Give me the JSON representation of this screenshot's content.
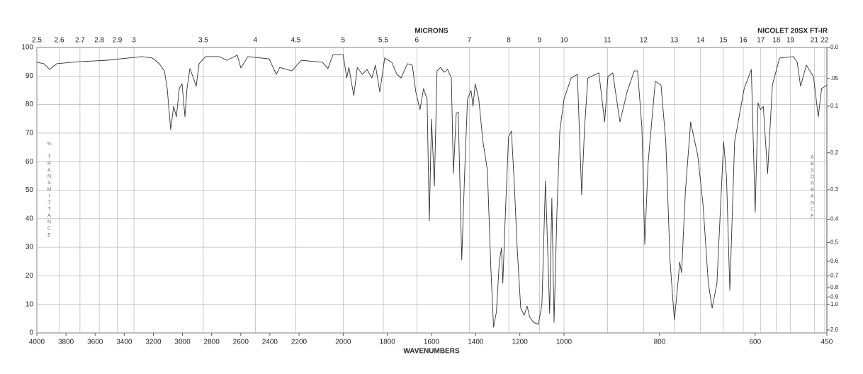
{
  "chart_data": {
    "type": "line",
    "title": "NICOLET 20SX FT-IR",
    "xlabel": "WAVENUMBERS",
    "x2label": "MICRONS",
    "ylabel": "% TRANSMITTANCE",
    "y2label": "ABSORBANCE",
    "color": "#333333",
    "grid": true,
    "xlim": [
      4000,
      450
    ],
    "xticks": [
      4000,
      3800,
      3600,
      3400,
      3200,
      3000,
      2800,
      2600,
      2400,
      2200,
      2000,
      1800,
      1600,
      1400,
      1200,
      1000,
      800,
      600,
      450
    ],
    "x2ticks": [
      2.5,
      2.6,
      2.7,
      2.8,
      2.9,
      3,
      3.5,
      4,
      4.5,
      5,
      5.5,
      6,
      7,
      8,
      9,
      10,
      11,
      12,
      13,
      14,
      15,
      16,
      17,
      18,
      19,
      21,
      22
    ],
    "ylim": [
      0,
      100
    ],
    "yticks": [
      0,
      10,
      20,
      30,
      40,
      50,
      60,
      70,
      80,
      90,
      100
    ],
    "y2ticks": [
      {
        "value": 0,
        "label": "0.0"
      },
      {
        "value": 0.05,
        "label": ".05"
      },
      0.1,
      0.2,
      0.3,
      0.4,
      0.5,
      0.6,
      0.7,
      0.8,
      0.9,
      {
        "value": 1,
        "label": "1.0"
      },
      {
        "value": 2,
        "label": "2.0"
      }
    ],
    "x": [
      4000,
      3951,
      3912,
      3864,
      3718,
      3523,
      3280,
      3207,
      3159,
      3124,
      3105,
      3081,
      3061,
      3042,
      3022,
      3003,
      2983,
      2969,
      2949,
      2925,
      2906,
      2886,
      2842,
      2745,
      2697,
      2624,
      2599,
      2551,
      2405,
      2356,
      2332,
      2249,
      2190,
      2094,
      2069,
      2046,
      2000,
      1984,
      1974,
      1952,
      1936,
      1913,
      1892,
      1870,
      1854,
      1834,
      1812,
      1780,
      1757,
      1738,
      1709,
      1687,
      1671,
      1652,
      1636,
      1620,
      1610,
      1600,
      1587,
      1575,
      1559,
      1543,
      1527,
      1510,
      1501,
      1488,
      1479,
      1463,
      1450,
      1437,
      1421,
      1412,
      1402,
      1386,
      1367,
      1347,
      1331,
      1319,
      1306,
      1293,
      1283,
      1277,
      1264,
      1251,
      1238,
      1225,
      1212,
      1196,
      1180,
      1167,
      1155,
      1138,
      1116,
      1100,
      1084,
      1071,
      1065,
      1055,
      1045,
      1032,
      1019,
      1000,
      985,
      972,
      963,
      957,
      950,
      927,
      915,
      908,
      898,
      883,
      868,
      853,
      846,
      837,
      831,
      824,
      809,
      797,
      787,
      778,
      769,
      761,
      758,
      754,
      746,
      735,
      720,
      709,
      698,
      690,
      680,
      666,
      660,
      653,
      643,
      623,
      608,
      600,
      594,
      589,
      583,
      574,
      564,
      549,
      520,
      512,
      505,
      493,
      478,
      468,
      461,
      450
    ],
    "values": [
      94.8,
      94.3,
      92.3,
      94.3,
      95,
      95.5,
      96.8,
      96.3,
      94.3,
      91.8,
      85.6,
      71.2,
      79.4,
      75.7,
      85.6,
      87.3,
      75.7,
      85.6,
      92.6,
      89.3,
      86.4,
      94.3,
      96.8,
      96.8,
      95.5,
      97.3,
      92.8,
      96.8,
      96,
      90.6,
      93,
      91.8,
      95.5,
      94.8,
      92.6,
      97.5,
      97.5,
      89.3,
      93,
      83.1,
      93,
      90.6,
      92.3,
      89.3,
      93.8,
      84.4,
      96.3,
      94.8,
      90.6,
      89.3,
      94.3,
      93.8,
      84.4,
      78.2,
      85.6,
      81.9,
      39.2,
      74.9,
      51.4,
      91.8,
      93,
      91.3,
      92.3,
      89.3,
      55.8,
      76.9,
      77.4,
      25.6,
      55.8,
      81.9,
      84.9,
      79.4,
      87.3,
      81.9,
      67,
      57.1,
      22.3,
      2,
      7.4,
      24.8,
      29.8,
      17.4,
      44.7,
      68.7,
      70.7,
      52.1,
      29.8,
      8.7,
      6.2,
      9.4,
      5.5,
      3.7,
      3,
      9.9,
      53.3,
      22.3,
      6.9,
      47.1,
      3.7,
      42.2,
      70.7,
      81.9,
      89.3,
      90.6,
      48.4,
      72,
      89.3,
      91.1,
      73.9,
      89.8,
      91.1,
      73.9,
      84.4,
      91.8,
      91.8,
      72,
      31,
      59.6,
      88.1,
      86.8,
      67,
      24.8,
      4.5,
      18.6,
      24.8,
      21.1,
      49.6,
      73.9,
      62,
      44.7,
      17.4,
      8.7,
      17.4,
      67,
      54.6,
      14.9,
      67,
      85.6,
      92.3,
      42.2,
      80.6,
      78.2,
      79.4,
      55.8,
      86.8,
      96.3,
      96.8,
      94.8,
      86.4,
      93.8,
      89.8,
      75.7,
      85.6,
      86.8
    ]
  }
}
